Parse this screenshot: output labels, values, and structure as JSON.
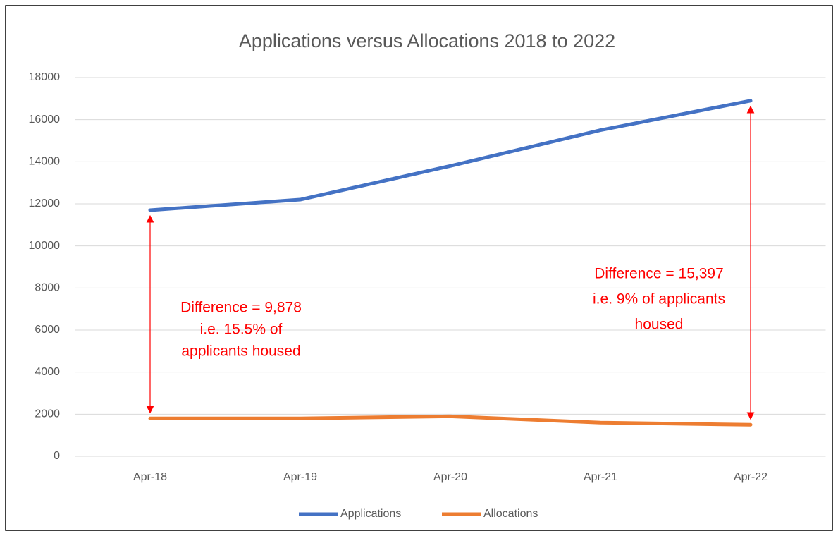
{
  "chart_data": {
    "type": "line",
    "title": "Applications versus Allocations 2018 to 2022",
    "categories": [
      "Apr-18",
      "Apr-19",
      "Apr-20",
      "Apr-21",
      "Apr-22"
    ],
    "series": [
      {
        "name": "Applications",
        "color": "#4472c4",
        "values": [
          11700,
          12200,
          13800,
          15500,
          16900
        ]
      },
      {
        "name": "Allocations",
        "color": "#ed7d31",
        "values": [
          1800,
          1800,
          1900,
          1600,
          1500
        ]
      }
    ],
    "ylim": [
      0,
      18000
    ],
    "yticks": [
      0,
      2000,
      4000,
      6000,
      8000,
      10000,
      12000,
      14000,
      16000,
      18000
    ],
    "grid": true,
    "legend": "bottom",
    "annotations": [
      {
        "lines": [
          "Difference = 9,878",
          "i.e. 15.5% of",
          "applicants housed"
        ]
      },
      {
        "lines": [
          "Difference = 15,397",
          "i.e. 9% of applicants",
          "housed"
        ]
      }
    ]
  }
}
